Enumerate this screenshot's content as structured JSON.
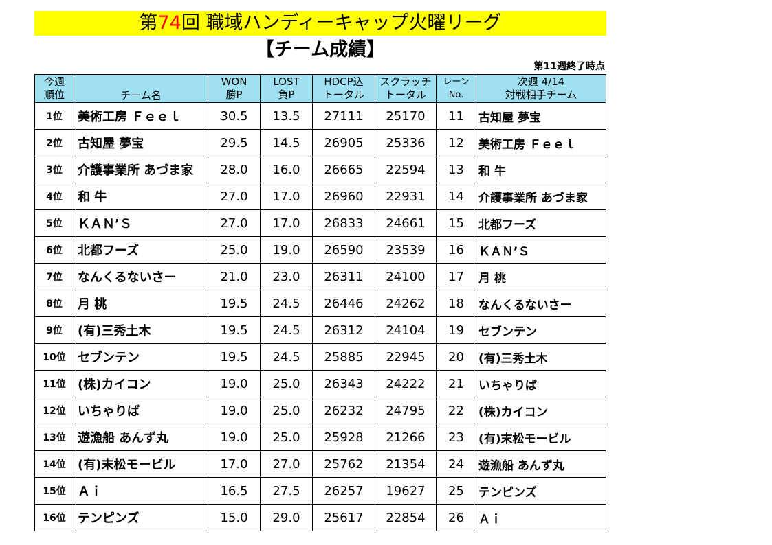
{
  "title": {
    "prefix": "第",
    "number": "74",
    "suffix": "回 職域ハンディーキャップ火曜リーグ"
  },
  "subtitle": "【チーム成績】",
  "as_of": "第11週終了時点",
  "headers": {
    "rank": [
      "今週",
      "順位"
    ],
    "team": "チーム名",
    "won": [
      "WON",
      "勝P"
    ],
    "lost": [
      "LOST",
      "負P"
    ],
    "hdcp": [
      "HDCP込",
      "トータル"
    ],
    "scratch": [
      "スクラッチ",
      "トータル"
    ],
    "lane": [
      "レーン",
      "No."
    ],
    "opponent": [
      "次週 4/14",
      "対戦相手チーム"
    ]
  },
  "rows": [
    {
      "rank": "1位",
      "team": "美術工房 Ｆｅｅｌ",
      "won": "30.5",
      "lost": "13.5",
      "hdcp": "27111",
      "scratch": "25170",
      "lane": "11",
      "opponent": "古知屋 夢宝"
    },
    {
      "rank": "2位",
      "team": "古知屋 夢宝",
      "won": "29.5",
      "lost": "14.5",
      "hdcp": "26905",
      "scratch": "25336",
      "lane": "12",
      "opponent": "美術工房 Ｆｅｅｌ"
    },
    {
      "rank": "3位",
      "team": "介護事業所 あづま家",
      "won": "28.0",
      "lost": "16.0",
      "hdcp": "26665",
      "scratch": "22594",
      "lane": "13",
      "opponent": "和 牛"
    },
    {
      "rank": "4位",
      "team": "和 牛",
      "won": "27.0",
      "lost": "17.0",
      "hdcp": "26960",
      "scratch": "22931",
      "lane": "14",
      "opponent": "介護事業所 あづま家"
    },
    {
      "rank": "5位",
      "team": "ＫＡＮ’Ｓ",
      "won": "27.0",
      "lost": "17.0",
      "hdcp": "26833",
      "scratch": "24661",
      "lane": "15",
      "opponent": "北都フーズ"
    },
    {
      "rank": "6位",
      "team": "北都フーズ",
      "won": "25.0",
      "lost": "19.0",
      "hdcp": "26590",
      "scratch": "23539",
      "lane": "16",
      "opponent": "ＫＡＮ’Ｓ"
    },
    {
      "rank": "7位",
      "team": "なんくるないさー",
      "won": "21.0",
      "lost": "23.0",
      "hdcp": "26311",
      "scratch": "24100",
      "lane": "17",
      "opponent": "月 桃"
    },
    {
      "rank": "8位",
      "team": "月 桃",
      "won": "19.5",
      "lost": "24.5",
      "hdcp": "26446",
      "scratch": "24262",
      "lane": "18",
      "opponent": "なんくるないさー"
    },
    {
      "rank": "9位",
      "team": "(有)三秀土木",
      "won": "19.5",
      "lost": "24.5",
      "hdcp": "26312",
      "scratch": "24104",
      "lane": "19",
      "opponent": "セブンテン"
    },
    {
      "rank": "10位",
      "team": "セブンテン",
      "won": "19.5",
      "lost": "24.5",
      "hdcp": "25885",
      "scratch": "22945",
      "lane": "20",
      "opponent": "(有)三秀土木"
    },
    {
      "rank": "11位",
      "team": "(株)カイコン",
      "won": "19.0",
      "lost": "25.0",
      "hdcp": "26343",
      "scratch": "24222",
      "lane": "21",
      "opponent": "いちゃりば"
    },
    {
      "rank": "12位",
      "team": "いちゃりば",
      "won": "19.0",
      "lost": "25.0",
      "hdcp": "26232",
      "scratch": "24795",
      "lane": "22",
      "opponent": "(株)カイコン"
    },
    {
      "rank": "13位",
      "team": "遊漁船 あんず丸",
      "won": "19.0",
      "lost": "25.0",
      "hdcp": "25928",
      "scratch": "21266",
      "lane": "23",
      "opponent": "(有)末松モービル"
    },
    {
      "rank": "14位",
      "team": "(有)末松モービル",
      "won": "17.0",
      "lost": "27.0",
      "hdcp": "25762",
      "scratch": "21354",
      "lane": "24",
      "opponent": "遊漁船 あんず丸"
    },
    {
      "rank": "15位",
      "team": "Ａｉ",
      "won": "16.5",
      "lost": "27.5",
      "hdcp": "26257",
      "scratch": "19627",
      "lane": "25",
      "opponent": "テンピンズ"
    },
    {
      "rank": "16位",
      "team": "テンピンズ",
      "won": "15.0",
      "lost": "29.0",
      "hdcp": "25617",
      "scratch": "22854",
      "lane": "26",
      "opponent": "Ａｉ"
    }
  ]
}
